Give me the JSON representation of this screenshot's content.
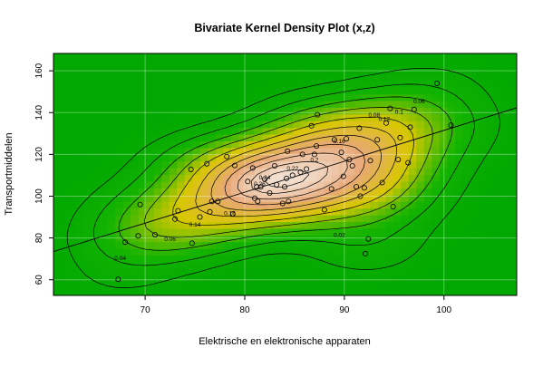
{
  "chart_data": {
    "type": "scatter",
    "title": "Bivariate Kernel Density Plot (x,z)",
    "xlabel": "Elektrische en elektronische apparaten",
    "ylabel": "Transportmiddelen",
    "xlim": [
      60.8,
      107.3
    ],
    "ylim": [
      52.5,
      168.3
    ],
    "x_ticks": [
      70,
      80,
      90,
      100
    ],
    "y_ticks": [
      60,
      80,
      100,
      120,
      140,
      160
    ],
    "colors": {
      "background": "#00a800",
      "low_density": "#14b400",
      "mid_density": "#d8c800",
      "high_density": "#e8a878",
      "peak_density": "#f2e2d4",
      "contour": "#000000"
    },
    "contour_levels": [
      {
        "label": "0.02",
        "x": 89.5,
        "y": 81.5
      },
      {
        "label": "0.04",
        "x": 67.5,
        "y": 70.5
      },
      {
        "label": "0.06",
        "x": 72.5,
        "y": 79.5
      },
      {
        "label": "0.06",
        "x": 97.5,
        "y": 145.5
      },
      {
        "label": "0.08",
        "x": 93.0,
        "y": 139.0
      },
      {
        "label": "0.1",
        "x": 95.5,
        "y": 140.5
      },
      {
        "label": "0.12",
        "x": 94.0,
        "y": 137.0
      },
      {
        "label": "0.14",
        "x": 75.0,
        "y": 86.5
      },
      {
        "label": "0.16",
        "x": 78.5,
        "y": 92.0
      },
      {
        "label": "0.16",
        "x": 89.5,
        "y": 126.5
      },
      {
        "label": "0.2",
        "x": 87.0,
        "y": 117.5
      },
      {
        "label": "0.22",
        "x": 84.8,
        "y": 113.5
      },
      {
        "label": "0.24",
        "x": 82.0,
        "y": 109.0
      },
      {
        "label": "0.26",
        "x": 81.5,
        "y": 106.0
      }
    ],
    "regression_line": {
      "x": [
        60.8,
        107.3
      ],
      "y": [
        73.5,
        142.3
      ]
    },
    "points": [
      [
        67.3,
        60.2
      ],
      [
        68.0,
        78.0
      ],
      [
        69.5,
        96.0
      ],
      [
        69.3,
        81.0
      ],
      [
        71.0,
        81.5
      ],
      [
        73.0,
        89.0
      ],
      [
        73.3,
        93.0
      ],
      [
        74.7,
        77.5
      ],
      [
        74.6,
        112.8
      ],
      [
        75.5,
        90.0
      ],
      [
        76.2,
        115.5
      ],
      [
        76.5,
        92.5
      ],
      [
        76.7,
        97.5
      ],
      [
        77.3,
        97.5
      ],
      [
        78.2,
        119.0
      ],
      [
        78.8,
        91.5
      ],
      [
        79.0,
        114.7
      ],
      [
        80.3,
        107.0
      ],
      [
        80.8,
        113.5
      ],
      [
        81.2,
        104.5
      ],
      [
        81.3,
        97.5
      ],
      [
        81.0,
        99.0
      ],
      [
        81.6,
        104.5
      ],
      [
        82.0,
        108.2
      ],
      [
        82.5,
        101.5
      ],
      [
        83.0,
        114.5
      ],
      [
        83.2,
        105.5
      ],
      [
        83.8,
        96.5
      ],
      [
        84.0,
        104.5
      ],
      [
        84.4,
        97.5
      ],
      [
        84.2,
        108.5
      ],
      [
        84.3,
        121.5
      ],
      [
        84.8,
        110.0
      ],
      [
        85.6,
        111.5
      ],
      [
        85.8,
        120.0
      ],
      [
        86.2,
        113.0
      ],
      [
        86.7,
        133.7
      ],
      [
        87.0,
        120.0
      ],
      [
        87.2,
        124.0
      ],
      [
        87.3,
        139.0
      ],
      [
        88.0,
        93.5
      ],
      [
        88.7,
        103.5
      ],
      [
        89.0,
        127.0
      ],
      [
        89.7,
        121.0
      ],
      [
        89.9,
        109.5
      ],
      [
        90.2,
        127.5
      ],
      [
        90.5,
        117.5
      ],
      [
        90.8,
        114.5
      ],
      [
        91.2,
        104.5
      ],
      [
        91.5,
        132.5
      ],
      [
        92.1,
        72.5
      ],
      [
        92.4,
        79.5
      ],
      [
        92.0,
        104.0
      ],
      [
        91.6,
        100.0
      ],
      [
        92.6,
        117.0
      ],
      [
        93.3,
        127.0
      ],
      [
        93.8,
        106.5
      ],
      [
        94.2,
        135.0
      ],
      [
        94.6,
        142.0
      ],
      [
        94.9,
        95.0
      ],
      [
        95.4,
        117.5
      ],
      [
        95.6,
        128.0
      ],
      [
        96.4,
        116.0
      ],
      [
        96.6,
        133.0
      ],
      [
        97.0,
        141.5
      ],
      [
        99.3,
        154.0
      ],
      [
        100.7,
        134.0
      ]
    ]
  }
}
